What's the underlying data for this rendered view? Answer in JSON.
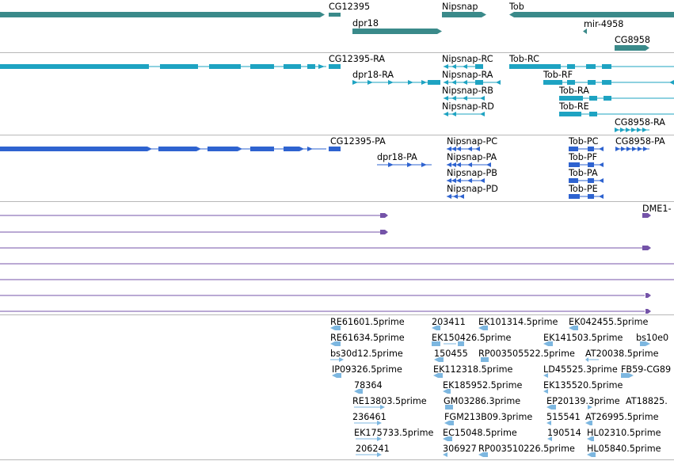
{
  "colors": {
    "gene": "#3a8a8a",
    "transcript": "#1ea3c2",
    "cds": "#2e63d0",
    "alignment": "#7453a8",
    "est": "#7db7e0",
    "divider": "#b8b8b8"
  },
  "tracks": {
    "genes": [
      {
        "label": "CG12395"
      },
      {
        "label": "Nipsnap"
      },
      {
        "label": "Tob"
      },
      {
        "label": "dpr18"
      },
      {
        "label": "mir-4958"
      },
      {
        "label": "CG8958"
      }
    ],
    "transcripts": [
      {
        "label": "CG12395-RA"
      },
      {
        "label": "Nipsnap-RC"
      },
      {
        "label": "Tob-RC"
      },
      {
        "label": "dpr18-RA"
      },
      {
        "label": "Nipsnap-RA"
      },
      {
        "label": "Tob-RF"
      },
      {
        "label": "Nipsnap-RB"
      },
      {
        "label": "Tob-RA"
      },
      {
        "label": "Nipsnap-RD"
      },
      {
        "label": "Tob-RE"
      },
      {
        "label": "CG8958-RA"
      }
    ],
    "proteins": [
      {
        "label": "CG12395-PA"
      },
      {
        "label": "Nipsnap-PC"
      },
      {
        "label": "Tob-PC"
      },
      {
        "label": "CG8958-PA"
      },
      {
        "label": "dpr18-PA"
      },
      {
        "label": "Nipsnap-PA"
      },
      {
        "label": "Tob-PF"
      },
      {
        "label": "Nipsnap-PB"
      },
      {
        "label": "Tob-PA"
      },
      {
        "label": "Nipsnap-PD"
      },
      {
        "label": "Tob-PE"
      }
    ],
    "alignments": [
      {
        "label": "DME1-"
      }
    ],
    "ests": [
      {
        "label": "RE61601.5prime"
      },
      {
        "label": "203411"
      },
      {
        "label": "EK101314.5prime"
      },
      {
        "label": "EK042455.5prime"
      },
      {
        "label": "RE61634.5prime"
      },
      {
        "label": "EK150426.5prime"
      },
      {
        "label": "EK141503.5prime"
      },
      {
        "label": "bs10e0"
      },
      {
        "label": "bs30d12.5prime"
      },
      {
        "label": "150455"
      },
      {
        "label": "RP003505522.5prime"
      },
      {
        "label": "AT20038.5prime"
      },
      {
        "label": "IP09326.5prime"
      },
      {
        "label": "EK112318.5prime"
      },
      {
        "label": "LD45525.3prime"
      },
      {
        "label": "FB59-CG89"
      },
      {
        "label": "78364"
      },
      {
        "label": "EK185952.5prime"
      },
      {
        "label": "EK135520.5prime"
      },
      {
        "label": "RE13803.5prime"
      },
      {
        "label": "GM03286.3prime"
      },
      {
        "label": "EP20139.3prime"
      },
      {
        "label": "AT18825."
      },
      {
        "label": "236461"
      },
      {
        "label": "FGM213B09.3prime"
      },
      {
        "label": "515541"
      },
      {
        "label": "AT26995.5prime"
      },
      {
        "label": "EK175733.5prime"
      },
      {
        "label": "EC15048.5prime"
      },
      {
        "label": "190514"
      },
      {
        "label": "HL02310.5prime"
      },
      {
        "label": "206241"
      },
      {
        "label": "306927"
      },
      {
        "label": "RP003510226.5prime"
      },
      {
        "label": "HL05840.5prime"
      }
    ]
  }
}
